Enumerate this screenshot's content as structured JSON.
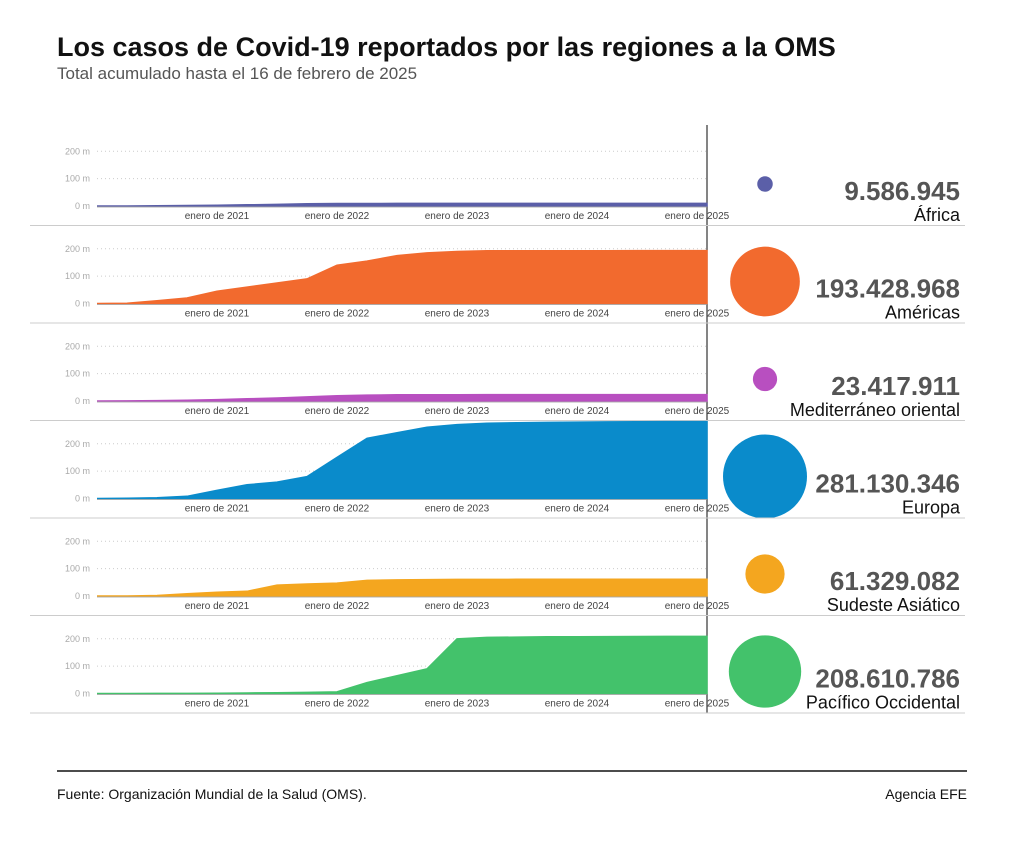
{
  "title": "Los casos de Covid-19 reportados por las regiones a la OMS",
  "subtitle": "Total acumulado hasta el 16 de febrero de 2025",
  "source": "Fuente: Organización Mundial de la Salud (OMS).",
  "credit": "Agencia EFE",
  "chart_data": {
    "type": "area",
    "x": [
      "2020-01",
      "2020-04",
      "2020-07",
      "2020-10",
      "2021-01",
      "2021-04",
      "2021-07",
      "2021-10",
      "2022-01",
      "2022-04",
      "2022-07",
      "2022-10",
      "2023-01",
      "2023-04",
      "2023-07",
      "2023-10",
      "2024-01",
      "2024-04",
      "2024-07",
      "2024-10",
      "2025-01",
      "2025-02"
    ],
    "xlim": [
      "2020-01",
      "2025-02"
    ],
    "xticks": [
      {
        "value": "2021-01",
        "label": "enero de 2021"
      },
      {
        "value": "2022-01",
        "label": "enero de 2022"
      },
      {
        "value": "2023-01",
        "label": "enero de 2023"
      },
      {
        "value": "2024-01",
        "label": "enero de 2024"
      },
      {
        "value": "2025-01",
        "label": "enero de 2025"
      }
    ],
    "ylim": [
      0,
      285
    ],
    "yticks": [
      {
        "value": 0,
        "label": "0 m"
      },
      {
        "value": 100,
        "label": "100 m"
      },
      {
        "value": 200,
        "label": "200 m"
      }
    ],
    "grid": true,
    "series": [
      {
        "name": "África",
        "color": "#5b5fa8",
        "total": 9.586945,
        "total_label": "9.586.945",
        "values": [
          0,
          0.01,
          0.8,
          1.7,
          3.0,
          4.3,
          6.0,
          8.4,
          9.1,
          9.3,
          9.4,
          9.5,
          9.5,
          9.55,
          9.56,
          9.57,
          9.58,
          9.58,
          9.58,
          9.586,
          9.586945,
          9.586945
        ]
      },
      {
        "name": "Américas",
        "color": "#f26a2e",
        "total": 193.428968,
        "total_label": "193.428.968",
        "values": [
          0,
          1,
          10,
          20,
          45,
          60,
          75,
          90,
          140,
          155,
          175,
          185,
          190,
          193,
          193,
          193,
          193,
          193,
          193.4,
          193.4,
          193.4,
          193.428968
        ]
      },
      {
        "name": "Mediterráneo oriental",
        "color": "#b84fc0",
        "total": 23.417911,
        "total_label": "23.417.911",
        "values": [
          0,
          0.2,
          1.5,
          3,
          5,
          8,
          11,
          15,
          19,
          21.5,
          22.5,
          23,
          23.2,
          23.3,
          23.35,
          23.4,
          23.41,
          23.41,
          23.415,
          23.417,
          23.417911,
          23.417911
        ]
      },
      {
        "name": "Europa",
        "color": "#0a8bcb",
        "total": 281.130346,
        "total_label": "281.130.346",
        "values": [
          0,
          1,
          3,
          8,
          30,
          50,
          60,
          80,
          150,
          220,
          240,
          260,
          270,
          275,
          277,
          278,
          279,
          280,
          280.5,
          281,
          281.130346,
          281.130346
        ]
      },
      {
        "name": "Sudeste Asiático",
        "color": "#f4a61f",
        "total": 61.329082,
        "total_label": "61.329.082",
        "values": [
          0,
          0.1,
          2,
          8,
          14,
          17,
          40,
          44,
          47,
          57,
          59,
          60,
          60.5,
          60.8,
          61,
          61.1,
          61.2,
          61.2,
          61.3,
          61.3,
          61.329082,
          61.329082
        ]
      },
      {
        "name": "Pacífico Occidental",
        "color": "#43c26b",
        "total": 208.610786,
        "total_label": "208.610.786",
        "values": [
          0,
          0.1,
          0.3,
          0.5,
          1,
          2,
          3,
          4,
          6,
          40,
          65,
          90,
          200,
          205,
          206,
          207,
          207.5,
          208,
          208.3,
          208.5,
          208.610786,
          208.610786
        ]
      }
    ]
  }
}
